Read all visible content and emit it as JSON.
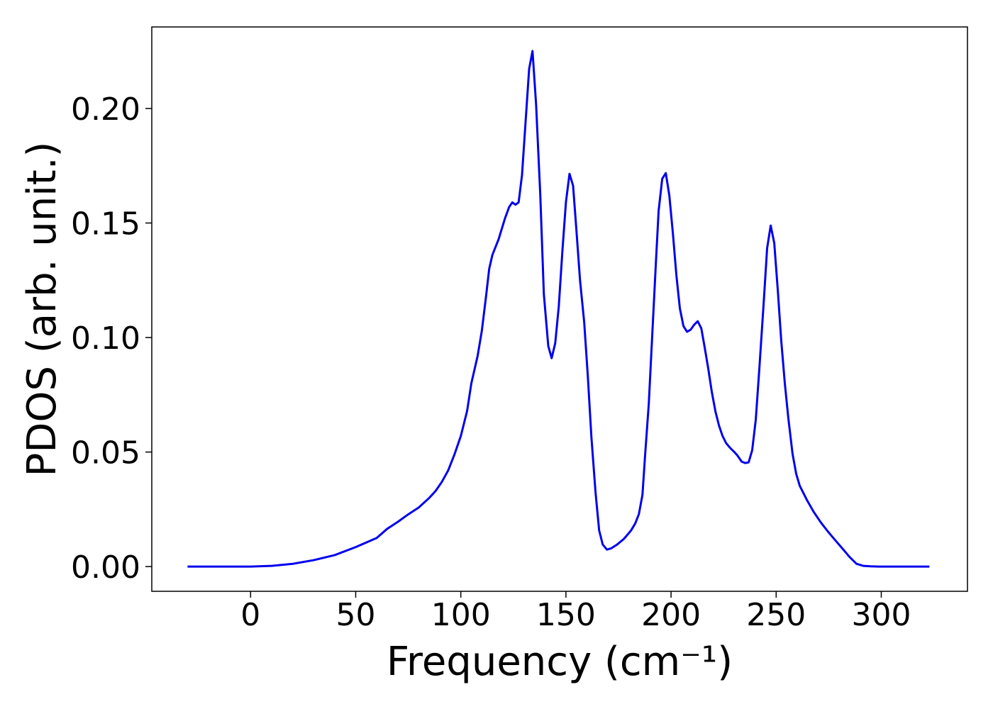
{
  "chart_data": {
    "type": "line",
    "xlabel": "Frequency (cm⁻¹)",
    "ylabel": "PDOS (arb. unit.)",
    "xlim": [
      -47,
      341
    ],
    "ylim": [
      -0.0108,
      0.2356
    ],
    "xticks": [
      0,
      50,
      100,
      150,
      200,
      250,
      300
    ],
    "yticks": [
      {
        "value": 0,
        "label": "0.00"
      },
      {
        "value": 0.05,
        "label": "0.05"
      },
      {
        "value": 0.1,
        "label": "0.10"
      },
      {
        "value": 0.15,
        "label": "0.15"
      },
      {
        "value": 0.2,
        "label": "0.20"
      }
    ],
    "grid": false,
    "series": [
      {
        "color": "#0000ee",
        "x": [
          -30,
          0,
          10,
          20,
          30,
          40,
          50,
          60,
          65,
          70,
          75,
          80,
          85,
          88,
          91,
          94,
          97,
          100,
          103,
          105,
          108,
          110,
          112,
          113.5,
          115,
          118,
          121,
          123,
          124.5,
          126,
          127.5,
          129.1,
          132.5,
          134.1,
          135.8,
          137.8,
          139.5,
          141.6,
          143.2,
          144.9,
          146.6,
          148.3,
          150.0,
          151.7,
          153.4,
          155.0,
          156.7,
          158.7,
          160.4,
          162.1,
          164.1,
          165.8,
          167.5,
          169.5,
          171.6,
          174.3,
          177.6,
          181.0,
          183.0,
          184.7,
          186.4,
          187.7,
          189.4,
          191.1,
          192.8,
          194.1,
          195.8,
          197.5,
          199.2,
          200.9,
          202.6,
          204.2,
          205.9,
          207.6,
          209.3,
          211.0,
          212.7,
          214.4,
          216.0,
          217.7,
          219.4,
          221.1,
          222.8,
          224.5,
          226.2,
          228.2,
          229.9,
          231.5,
          233.6,
          235.3,
          236.9,
          238.6,
          240.3,
          242.0,
          244.0,
          245.7,
          247.4,
          249.1,
          250.8,
          252.4,
          254.1,
          255.8,
          257.8,
          259.5,
          261.2,
          264.6,
          267.9,
          271.3,
          274.7,
          278.1,
          281.4,
          284.8,
          288.2,
          291.5,
          294.9,
          298.9,
          322.9
        ],
        "values": [
          0,
          0,
          0.0003,
          0.0012,
          0.0028,
          0.005,
          0.0085,
          0.0125,
          0.0165,
          0.0195,
          0.0228,
          0.0258,
          0.03,
          0.033,
          0.037,
          0.042,
          0.049,
          0.057,
          0.068,
          0.08,
          0.092,
          0.103,
          0.118,
          0.13,
          0.136,
          0.143,
          0.152,
          0.157,
          0.159,
          0.158,
          0.159,
          0.1709,
          0.2173,
          0.2251,
          0.2019,
          0.1622,
          0.1189,
          0.0963,
          0.091,
          0.0975,
          0.1136,
          0.1375,
          0.1591,
          0.1715,
          0.1663,
          0.1467,
          0.1251,
          0.1065,
          0.0833,
          0.0567,
          0.0322,
          0.0158,
          0.0096,
          0.0074,
          0.008,
          0.0096,
          0.0121,
          0.0158,
          0.0189,
          0.0229,
          0.0313,
          0.0492,
          0.0709,
          0.1019,
          0.1328,
          0.1554,
          0.1693,
          0.1718,
          0.1619,
          0.1452,
          0.1266,
          0.1127,
          0.105,
          0.1025,
          0.1034,
          0.1056,
          0.1071,
          0.104,
          0.0957,
          0.0864,
          0.0762,
          0.0678,
          0.0616,
          0.057,
          0.0539,
          0.0517,
          0.0502,
          0.0486,
          0.0458,
          0.0452,
          0.0455,
          0.0508,
          0.0641,
          0.0864,
          0.1142,
          0.139,
          0.1489,
          0.1412,
          0.1204,
          0.0988,
          0.0802,
          0.0647,
          0.0492,
          0.0406,
          0.0353,
          0.0291,
          0.0238,
          0.0192,
          0.0152,
          0.0115,
          0.008,
          0.0043,
          0.0012,
          0.0003,
          0.0001,
          0,
          0
        ]
      }
    ]
  }
}
